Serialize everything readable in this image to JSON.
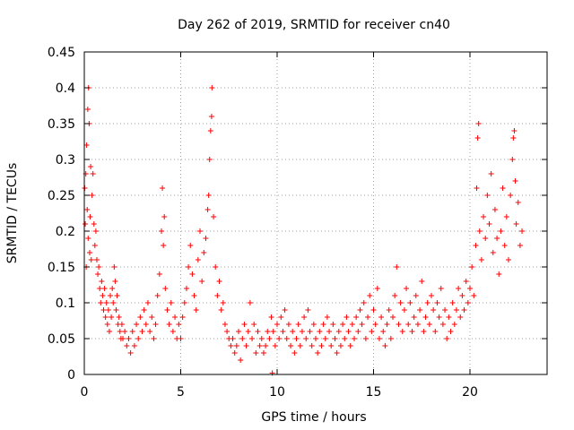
{
  "chart_data": {
    "type": "scatter",
    "title": "Day 262 of 2019, SRMTID for receiver cn40",
    "xlabel": "GPS time / hours",
    "ylabel": "SRMTID / TECUs",
    "xlim": [
      0,
      24
    ],
    "ylim": [
      0,
      0.45
    ],
    "xticks": [
      0,
      5,
      10,
      15,
      20
    ],
    "yticks": [
      0,
      0.05,
      0.1,
      0.15,
      0.2,
      0.25,
      0.3,
      0.35,
      0.4,
      0.45
    ],
    "xtick_labels": [
      "0",
      "5",
      "10",
      "15",
      "20"
    ],
    "ytick_labels": [
      "0",
      "0.05",
      "0.1",
      "0.15",
      "0.2",
      "0.25",
      "0.3",
      "0.35",
      "0.4",
      "0.45"
    ],
    "grid": true,
    "marker": "+",
    "color": "#ff0000",
    "series": [
      {
        "name": "SRMTID",
        "points": [
          [
            0.02,
            0.26
          ],
          [
            0.05,
            0.21
          ],
          [
            0.08,
            0.28
          ],
          [
            0.1,
            0.15
          ],
          [
            0.12,
            0.32
          ],
          [
            0.15,
            0.23
          ],
          [
            0.18,
            0.37
          ],
          [
            0.2,
            0.19
          ],
          [
            0.22,
            0.4
          ],
          [
            0.25,
            0.35
          ],
          [
            0.28,
            0.17
          ],
          [
            0.3,
            0.22
          ],
          [
            0.33,
            0.29
          ],
          [
            0.36,
            0.16
          ],
          [
            0.4,
            0.25
          ],
          [
            0.45,
            0.28
          ],
          [
            0.5,
            0.21
          ],
          [
            0.55,
            0.18
          ],
          [
            0.6,
            0.2
          ],
          [
            0.65,
            0.16
          ],
          [
            0.7,
            0.14
          ],
          [
            0.75,
            0.15
          ],
          [
            0.8,
            0.12
          ],
          [
            0.85,
            0.1
          ],
          [
            0.9,
            0.13
          ],
          [
            0.95,
            0.11
          ],
          [
            1.0,
            0.09
          ],
          [
            1.05,
            0.12
          ],
          [
            1.1,
            0.08
          ],
          [
            1.15,
            0.1
          ],
          [
            1.2,
            0.07
          ],
          [
            1.25,
            0.09
          ],
          [
            1.3,
            0.06
          ],
          [
            1.35,
            0.11
          ],
          [
            1.4,
            0.08
          ],
          [
            1.45,
            0.12
          ],
          [
            1.5,
            0.1
          ],
          [
            1.55,
            0.15
          ],
          [
            1.6,
            0.13
          ],
          [
            1.65,
            0.09
          ],
          [
            1.7,
            0.11
          ],
          [
            1.75,
            0.07
          ],
          [
            1.8,
            0.08
          ],
          [
            1.85,
            0.06
          ],
          [
            1.9,
            0.05
          ],
          [
            1.95,
            0.07
          ],
          [
            2.0,
            0.05
          ],
          [
            2.1,
            0.06
          ],
          [
            2.2,
            0.04
          ],
          [
            2.3,
            0.05
          ],
          [
            2.4,
            0.03
          ],
          [
            2.5,
            0.06
          ],
          [
            2.6,
            0.04
          ],
          [
            2.7,
            0.07
          ],
          [
            2.8,
            0.05
          ],
          [
            2.9,
            0.08
          ],
          [
            3.0,
            0.06
          ],
          [
            3.1,
            0.09
          ],
          [
            3.2,
            0.07
          ],
          [
            3.3,
            0.1
          ],
          [
            3.4,
            0.06
          ],
          [
            3.5,
            0.08
          ],
          [
            3.6,
            0.05
          ],
          [
            3.7,
            0.07
          ],
          [
            3.8,
            0.11
          ],
          [
            3.9,
            0.14
          ],
          [
            4.0,
            0.2
          ],
          [
            4.05,
            0.26
          ],
          [
            4.1,
            0.18
          ],
          [
            4.15,
            0.22
          ],
          [
            4.2,
            0.12
          ],
          [
            4.3,
            0.09
          ],
          [
            4.4,
            0.07
          ],
          [
            4.5,
            0.1
          ],
          [
            4.6,
            0.06
          ],
          [
            4.7,
            0.08
          ],
          [
            4.8,
            0.05
          ],
          [
            4.9,
            0.07
          ],
          [
            5.0,
            0.05
          ],
          [
            5.1,
            0.08
          ],
          [
            5.2,
            0.1
          ],
          [
            5.3,
            0.12
          ],
          [
            5.4,
            0.15
          ],
          [
            5.5,
            0.18
          ],
          [
            5.6,
            0.14
          ],
          [
            5.7,
            0.11
          ],
          [
            5.8,
            0.09
          ],
          [
            5.9,
            0.16
          ],
          [
            6.0,
            0.2
          ],
          [
            6.1,
            0.13
          ],
          [
            6.2,
            0.17
          ],
          [
            6.3,
            0.19
          ],
          [
            6.4,
            0.23
          ],
          [
            6.45,
            0.25
          ],
          [
            6.5,
            0.3
          ],
          [
            6.55,
            0.34
          ],
          [
            6.6,
            0.36
          ],
          [
            6.62,
            0.4
          ],
          [
            6.7,
            0.22
          ],
          [
            6.8,
            0.15
          ],
          [
            6.9,
            0.11
          ],
          [
            7.0,
            0.13
          ],
          [
            7.1,
            0.09
          ],
          [
            7.2,
            0.1
          ],
          [
            7.3,
            0.07
          ],
          [
            7.4,
            0.06
          ],
          [
            7.5,
            0.05
          ],
          [
            7.6,
            0.04
          ],
          [
            7.7,
            0.05
          ],
          [
            7.8,
            0.03
          ],
          [
            7.9,
            0.04
          ],
          [
            8.0,
            0.06
          ],
          [
            8.1,
            0.02
          ],
          [
            8.2,
            0.05
          ],
          [
            8.3,
            0.07
          ],
          [
            8.4,
            0.04
          ],
          [
            8.5,
            0.06
          ],
          [
            8.6,
            0.1
          ],
          [
            8.7,
            0.05
          ],
          [
            8.8,
            0.07
          ],
          [
            8.9,
            0.03
          ],
          [
            9.0,
            0.06
          ],
          [
            9.1,
            0.04
          ],
          [
            9.2,
            0.05
          ],
          [
            9.3,
            0.03
          ],
          [
            9.4,
            0.04
          ],
          [
            9.5,
            0.06
          ],
          [
            9.6,
            0.05
          ],
          [
            9.7,
            0.08
          ],
          [
            9.75,
            0.002
          ],
          [
            9.8,
            0.06
          ],
          [
            9.9,
            0.04
          ],
          [
            10.0,
            0.07
          ],
          [
            10.1,
            0.05
          ],
          [
            10.2,
            0.08
          ],
          [
            10.3,
            0.06
          ],
          [
            10.4,
            0.09
          ],
          [
            10.5,
            0.05
          ],
          [
            10.6,
            0.07
          ],
          [
            10.7,
            0.04
          ],
          [
            10.8,
            0.06
          ],
          [
            10.9,
            0.03
          ],
          [
            11.0,
            0.05
          ],
          [
            11.1,
            0.07
          ],
          [
            11.2,
            0.04
          ],
          [
            11.3,
            0.06
          ],
          [
            11.4,
            0.08
          ],
          [
            11.5,
            0.05
          ],
          [
            11.6,
            0.09
          ],
          [
            11.7,
            0.06
          ],
          [
            11.8,
            0.04
          ],
          [
            11.9,
            0.07
          ],
          [
            12.0,
            0.05
          ],
          [
            12.1,
            0.03
          ],
          [
            12.2,
            0.06
          ],
          [
            12.3,
            0.04
          ],
          [
            12.4,
            0.07
          ],
          [
            12.5,
            0.05
          ],
          [
            12.6,
            0.08
          ],
          [
            12.7,
            0.06
          ],
          [
            12.8,
            0.04
          ],
          [
            12.9,
            0.07
          ],
          [
            13.0,
            0.05
          ],
          [
            13.1,
            0.03
          ],
          [
            13.2,
            0.06
          ],
          [
            13.3,
            0.04
          ],
          [
            13.4,
            0.07
          ],
          [
            13.5,
            0.05
          ],
          [
            13.6,
            0.08
          ],
          [
            13.7,
            0.06
          ],
          [
            13.8,
            0.04
          ],
          [
            13.9,
            0.07
          ],
          [
            14.0,
            0.05
          ],
          [
            14.1,
            0.08
          ],
          [
            14.2,
            0.06
          ],
          [
            14.3,
            0.09
          ],
          [
            14.4,
            0.07
          ],
          [
            14.5,
            0.1
          ],
          [
            14.6,
            0.05
          ],
          [
            14.7,
            0.08
          ],
          [
            14.8,
            0.11
          ],
          [
            14.9,
            0.06
          ],
          [
            15.0,
            0.09
          ],
          [
            15.1,
            0.07
          ],
          [
            15.2,
            0.12
          ],
          [
            15.3,
            0.05
          ],
          [
            15.4,
            0.08
          ],
          [
            15.5,
            0.06
          ],
          [
            15.6,
            0.04
          ],
          [
            15.7,
            0.07
          ],
          [
            15.8,
            0.09
          ],
          [
            15.9,
            0.05
          ],
          [
            16.0,
            0.08
          ],
          [
            16.1,
            0.11
          ],
          [
            16.2,
            0.15
          ],
          [
            16.3,
            0.07
          ],
          [
            16.4,
            0.1
          ],
          [
            16.5,
            0.06
          ],
          [
            16.6,
            0.09
          ],
          [
            16.7,
            0.12
          ],
          [
            16.8,
            0.07
          ],
          [
            16.9,
            0.1
          ],
          [
            17.0,
            0.06
          ],
          [
            17.1,
            0.08
          ],
          [
            17.2,
            0.11
          ],
          [
            17.3,
            0.07
          ],
          [
            17.4,
            0.09
          ],
          [
            17.5,
            0.13
          ],
          [
            17.6,
            0.06
          ],
          [
            17.7,
            0.08
          ],
          [
            17.8,
            0.1
          ],
          [
            17.9,
            0.07
          ],
          [
            18.0,
            0.11
          ],
          [
            18.1,
            0.09
          ],
          [
            18.2,
            0.06
          ],
          [
            18.3,
            0.1
          ],
          [
            18.4,
            0.08
          ],
          [
            18.5,
            0.12
          ],
          [
            18.6,
            0.07
          ],
          [
            18.7,
            0.09
          ],
          [
            18.8,
            0.05
          ],
          [
            18.9,
            0.08
          ],
          [
            19.0,
            0.06
          ],
          [
            19.1,
            0.1
          ],
          [
            19.2,
            0.07
          ],
          [
            19.3,
            0.09
          ],
          [
            19.4,
            0.12
          ],
          [
            19.5,
            0.08
          ],
          [
            19.6,
            0.11
          ],
          [
            19.7,
            0.09
          ],
          [
            19.8,
            0.13
          ],
          [
            19.9,
            0.1
          ],
          [
            20.0,
            0.12
          ],
          [
            20.1,
            0.15
          ],
          [
            20.2,
            0.11
          ],
          [
            20.3,
            0.18
          ],
          [
            20.35,
            0.26
          ],
          [
            20.4,
            0.33
          ],
          [
            20.45,
            0.35
          ],
          [
            20.5,
            0.2
          ],
          [
            20.6,
            0.16
          ],
          [
            20.7,
            0.22
          ],
          [
            20.8,
            0.19
          ],
          [
            20.9,
            0.25
          ],
          [
            21.0,
            0.21
          ],
          [
            21.1,
            0.28
          ],
          [
            21.2,
            0.17
          ],
          [
            21.3,
            0.23
          ],
          [
            21.4,
            0.19
          ],
          [
            21.5,
            0.14
          ],
          [
            21.6,
            0.2
          ],
          [
            21.7,
            0.26
          ],
          [
            21.8,
            0.18
          ],
          [
            21.9,
            0.22
          ],
          [
            22.0,
            0.16
          ],
          [
            22.1,
            0.25
          ],
          [
            22.2,
            0.3
          ],
          [
            22.25,
            0.33
          ],
          [
            22.3,
            0.34
          ],
          [
            22.35,
            0.27
          ],
          [
            22.4,
            0.21
          ],
          [
            22.5,
            0.24
          ],
          [
            22.6,
            0.18
          ],
          [
            22.7,
            0.2
          ]
        ]
      }
    ]
  }
}
